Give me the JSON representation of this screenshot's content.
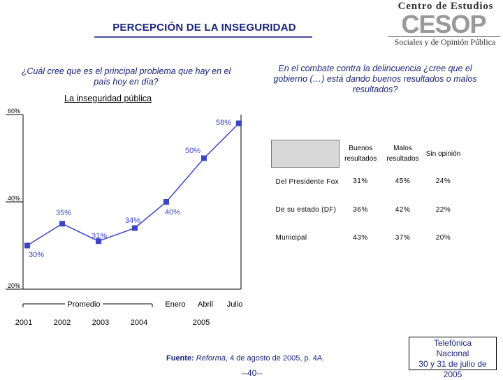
{
  "header": {
    "title": "PERCEPCIÓN DE LA INSEGURIDAD",
    "logo": {
      "top": "Centro de Estudios",
      "mark": "CESOP",
      "bottom": "Sociales y de Opinión Pública"
    }
  },
  "left_question": "¿Cuál cree que es el principal problema que hay en el país hoy en día?",
  "left_subtitle": "La inseguridad pública",
  "right_question": "En el combate contra la delincuencia ¿cree que el gobierno (…) está dando buenos resultados o malos resultados?",
  "chart_data": {
    "type": "line",
    "title": "La inseguridad pública",
    "x": [
      "2001",
      "2002",
      "2003",
      "2004",
      "Enero",
      "Abril",
      "Julio"
    ],
    "series": [
      {
        "name": "La inseguridad pública",
        "values": [
          30,
          35,
          31,
          34,
          40,
          50,
          58
        ],
        "labels": [
          "30%",
          "35%",
          "31%",
          "34%",
          "40%",
          "50%",
          "58%"
        ]
      }
    ],
    "y_ticks": [
      20,
      40,
      60
    ],
    "y_tick_labels": [
      "20%",
      "40%",
      "60%"
    ],
    "ylim": [
      20,
      60
    ],
    "group_labels": {
      "promedio": "Promedio",
      "year_2005": "2005"
    },
    "year_labels": [
      "2001",
      "2002",
      "2003",
      "2004"
    ],
    "color": "#3b45c4"
  },
  "table": {
    "headers": [
      "Buenos resultados",
      "Malos resultados",
      "Sin opinión"
    ],
    "rows": [
      {
        "label": "Del Presidente Fox",
        "values": [
          "31%",
          "45%",
          "24%"
        ]
      },
      {
        "label": "De su estado (DF)",
        "values": [
          "36%",
          "42%",
          "22%"
        ]
      },
      {
        "label": "Municipal",
        "values": [
          "43%",
          "37%",
          "20%"
        ]
      }
    ]
  },
  "footer": {
    "source_label": "Fuente:",
    "source_pub": "Reforma",
    "source_rest": ", 4 de agosto de 2005, p. 4A.",
    "page": "--40--",
    "poll_lines": [
      "Telefónica",
      "Nacional",
      "30 y 31 de julio de 2005"
    ]
  }
}
